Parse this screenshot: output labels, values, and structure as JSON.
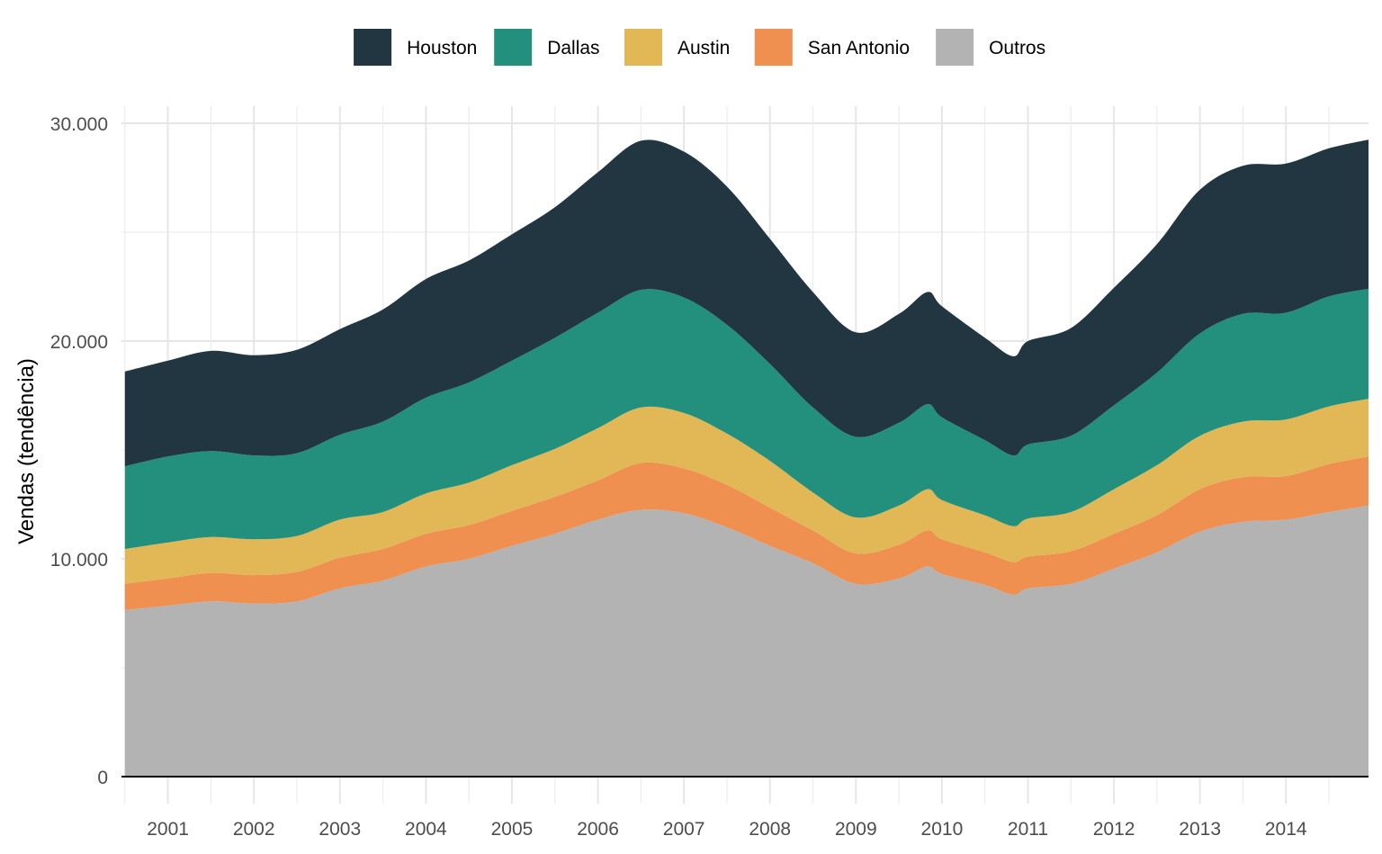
{
  "chart_data": {
    "type": "area",
    "stacked": true,
    "ylabel": "Vendas (tendência)",
    "xlabel": "",
    "ylim": [
      0,
      30000
    ],
    "yticks": [
      0,
      10000,
      20000,
      30000
    ],
    "ytick_labels": [
      "0",
      "10.000",
      "20.000",
      "30.000"
    ],
    "xticks": [
      2001,
      2002,
      2003,
      2004,
      2005,
      2006,
      2007,
      2008,
      2009,
      2010,
      2011,
      2012,
      2013,
      2014
    ],
    "xtick_labels": [
      "2001",
      "2002",
      "2003",
      "2004",
      "2005",
      "2006",
      "2007",
      "2008",
      "2009",
      "2010",
      "2011",
      "2012",
      "2013",
      "2014"
    ],
    "xlim": [
      2000.46,
      2014.96
    ],
    "grid": true,
    "legend_position": "top",
    "x": [
      2000.5,
      2001.0,
      2001.5,
      2002.0,
      2002.5,
      2003.0,
      2003.5,
      2004.0,
      2004.5,
      2005.0,
      2005.5,
      2006.0,
      2006.5,
      2007.0,
      2007.5,
      2008.0,
      2008.5,
      2009.0,
      2009.5,
      2009.83,
      2010.0,
      2010.5,
      2010.83,
      2011.0,
      2011.5,
      2012.0,
      2012.5,
      2013.0,
      2013.5,
      2014.0,
      2014.5,
      2014.96
    ],
    "series": [
      {
        "name": "Outros",
        "color": "#b3b3b3",
        "values": [
          7650,
          7850,
          8050,
          7950,
          8050,
          8650,
          9000,
          9650,
          10000,
          10600,
          11150,
          11800,
          12250,
          12100,
          11450,
          10600,
          9800,
          8850,
          9100,
          9650,
          9300,
          8800,
          8350,
          8650,
          8850,
          9550,
          10300,
          11250,
          11700,
          11800,
          12150,
          12450
        ]
      },
      {
        "name": "San Antonio",
        "color": "#ef8f50",
        "values": [
          1200,
          1250,
          1300,
          1300,
          1350,
          1400,
          1450,
          1500,
          1550,
          1600,
          1700,
          1800,
          2150,
          2050,
          1950,
          1750,
          1500,
          1400,
          1550,
          1650,
          1600,
          1500,
          1500,
          1450,
          1500,
          1600,
          1700,
          1950,
          2050,
          2000,
          2200,
          2250
        ]
      },
      {
        "name": "Austin",
        "color": "#e2b857",
        "values": [
          1600,
          1650,
          1650,
          1650,
          1650,
          1750,
          1700,
          1850,
          1950,
          2100,
          2200,
          2400,
          2550,
          2550,
          2350,
          2150,
          1750,
          1650,
          1800,
          1900,
          1800,
          1700,
          1650,
          1750,
          1800,
          2050,
          2300,
          2450,
          2550,
          2600,
          2650,
          2650
        ]
      },
      {
        "name": "Dallas",
        "color": "#23907e",
        "values": [
          3800,
          3950,
          3950,
          3850,
          3800,
          3900,
          4150,
          4400,
          4600,
          4800,
          5100,
          5300,
          5400,
          5300,
          5000,
          4450,
          3900,
          3700,
          3800,
          3900,
          3800,
          3450,
          3250,
          3400,
          3500,
          3850,
          4250,
          4700,
          4950,
          4900,
          5050,
          5050
        ]
      },
      {
        "name": "Houston",
        "color": "#213641",
        "values": [
          4350,
          4400,
          4600,
          4600,
          4750,
          4850,
          5150,
          5450,
          5600,
          5800,
          6000,
          6450,
          6850,
          6700,
          6350,
          5750,
          5300,
          4800,
          5000,
          5150,
          5100,
          4700,
          4550,
          4750,
          4950,
          5400,
          5900,
          6600,
          6800,
          6850,
          6800,
          6850
        ]
      }
    ],
    "legend_order": [
      "Houston",
      "Dallas",
      "Austin",
      "San Antonio",
      "Outros"
    ]
  }
}
